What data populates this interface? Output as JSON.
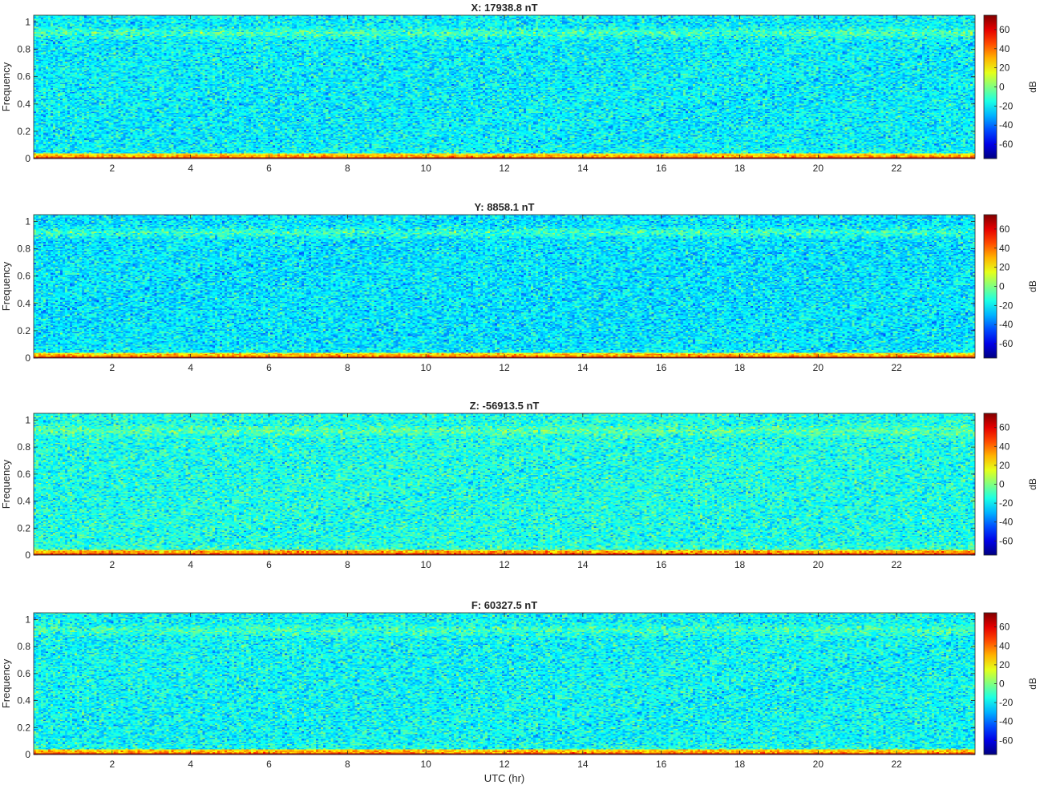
{
  "chart_data": [
    {
      "type": "heatmap",
      "title": "X: 17938.8 nT",
      "xlabel": "",
      "ylabel": "Frequency",
      "xlim": [
        0,
        24
      ],
      "ylim": [
        0,
        1.05
      ],
      "x_ticks": [
        "2",
        "4",
        "6",
        "8",
        "10",
        "12",
        "14",
        "16",
        "18",
        "20",
        "22"
      ],
      "y_ticks": [
        "0",
        "0.2",
        "0.4",
        "0.6",
        "0.8",
        "1"
      ],
      "colorbar": {
        "label": "dB",
        "ticks": [
          "60",
          "40",
          "20",
          "0",
          "-20",
          "-40",
          "-60"
        ],
        "range": [
          -75,
          75
        ]
      },
      "level_db": {
        "dc": 70,
        "low_band": 20,
        "background": -20,
        "band_0_9": -8
      }
    },
    {
      "type": "heatmap",
      "title": "Y: 8858.1 nT",
      "xlabel": "",
      "ylabel": "Frequency",
      "xlim": [
        0,
        24
      ],
      "ylim": [
        0,
        1.05
      ],
      "x_ticks": [
        "2",
        "4",
        "6",
        "8",
        "10",
        "12",
        "14",
        "16",
        "18",
        "20",
        "22"
      ],
      "y_ticks": [
        "0",
        "0.2",
        "0.4",
        "0.6",
        "0.8",
        "1"
      ],
      "colorbar": {
        "label": "dB",
        "ticks": [
          "60",
          "40",
          "20",
          "0",
          "-20",
          "-40",
          "-60"
        ],
        "range": [
          -75,
          75
        ]
      },
      "level_db": {
        "dc": 70,
        "low_band": 20,
        "background": -22,
        "band_0_9": -10
      }
    },
    {
      "type": "heatmap",
      "title": "Z: -56913.5 nT",
      "xlabel": "",
      "ylabel": "Frequency",
      "xlim": [
        0,
        24
      ],
      "ylim": [
        0,
        1.05
      ],
      "x_ticks": [
        "2",
        "4",
        "6",
        "8",
        "10",
        "12",
        "14",
        "16",
        "18",
        "20",
        "22"
      ],
      "y_ticks": [
        "0",
        "0.2",
        "0.4",
        "0.6",
        "0.8",
        "1"
      ],
      "colorbar": {
        "label": "dB",
        "ticks": [
          "60",
          "40",
          "20",
          "0",
          "-20",
          "-40",
          "-60"
        ],
        "range": [
          -75,
          75
        ]
      },
      "level_db": {
        "dc": 70,
        "low_band": 25,
        "background": -15,
        "band_0_9": -5
      }
    },
    {
      "type": "heatmap",
      "title": "F: 60327.5 nT",
      "xlabel": "UTC (hr)",
      "ylabel": "Frequency",
      "xlim": [
        0,
        24
      ],
      "ylim": [
        0,
        1.05
      ],
      "x_ticks": [
        "2",
        "4",
        "6",
        "8",
        "10",
        "12",
        "14",
        "16",
        "18",
        "20",
        "22"
      ],
      "y_ticks": [
        "0",
        "0.2",
        "0.4",
        "0.6",
        "0.8",
        "1"
      ],
      "colorbar": {
        "label": "dB",
        "ticks": [
          "60",
          "40",
          "20",
          "0",
          "-20",
          "-40",
          "-60"
        ],
        "range": [
          -75,
          75
        ]
      },
      "level_db": {
        "dc": 70,
        "low_band": 22,
        "background": -18,
        "band_0_9": -8
      }
    }
  ]
}
